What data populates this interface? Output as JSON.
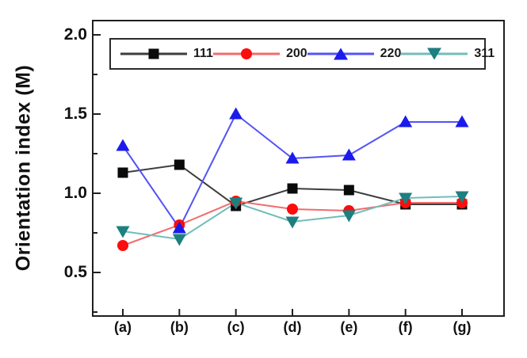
{
  "chart_data": {
    "type": "line",
    "title": "",
    "xlabel": "",
    "ylabel": "Orientation index (M)",
    "categories": [
      "(a)",
      "(b)",
      "(c)",
      "(d)",
      "(e)",
      "(f)",
      "(g)"
    ],
    "series": [
      {
        "name": "111",
        "marker": "square",
        "line_color": "#3d3d3d",
        "marker_color": "#0a0a0a",
        "values": [
          1.13,
          1.18,
          0.92,
          1.03,
          1.02,
          0.93,
          0.93
        ]
      },
      {
        "name": "200",
        "marker": "circle",
        "line_color": "#f16c6c",
        "marker_color": "#fc0d0d",
        "values": [
          0.67,
          0.8,
          0.95,
          0.9,
          0.89,
          0.94,
          0.94
        ]
      },
      {
        "name": "220",
        "marker": "triangle-up",
        "line_color": "#5353f7",
        "marker_color": "#1b1bec",
        "values": [
          1.3,
          0.78,
          1.5,
          1.22,
          1.24,
          1.45,
          1.45
        ]
      },
      {
        "name": "311",
        "marker": "triangle-down",
        "line_color": "#72bdb9",
        "marker_color": "#1d7f7f",
        "values": [
          0.76,
          0.71,
          0.94,
          0.82,
          0.86,
          0.97,
          0.98
        ]
      }
    ],
    "y_ticks": [
      2.0,
      1.5,
      1.0,
      0.5
    ],
    "y_tick_labels": [
      "2.0",
      "1.5",
      "1.0",
      "0.5"
    ],
    "y_minor_ticks": [
      1.75,
      1.25,
      0.75,
      0.25
    ],
    "ylim": [
      0.23,
      2.085
    ],
    "grid": false,
    "legend_position": "top-inside",
    "axis_color": "#1f1f1f",
    "text_color": "#111111"
  }
}
